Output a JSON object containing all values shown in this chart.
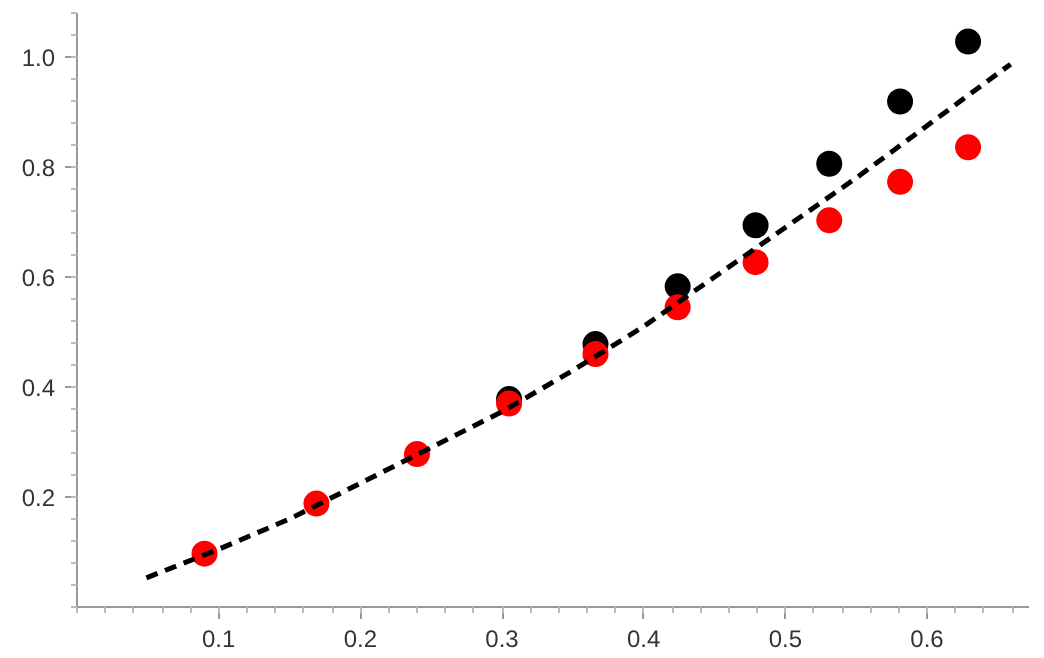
{
  "chart_data": {
    "type": "scatter",
    "xlim": [
      0,
      0.672
    ],
    "ylim": [
      0,
      1.08
    ],
    "xticks": [
      0.1,
      0.2,
      0.3,
      0.4,
      0.5,
      0.6
    ],
    "yticks": [
      0.2,
      0.4,
      0.6,
      0.8,
      {
        "value": 1.0,
        "label": "1.0"
      }
    ],
    "grid": false,
    "marker": "circle",
    "series": [
      {
        "color": "#000000",
        "x": [
          0.305,
          0.366,
          0.424,
          0.479,
          0.531,
          0.581,
          0.629
        ],
        "values": [
          0.378,
          0.478,
          0.583,
          0.694,
          0.806,
          0.919,
          1.028
        ]
      },
      {
        "color": "#ff0000",
        "x": [
          0.09,
          0.169,
          0.24,
          0.305,
          0.366,
          0.424,
          0.479,
          0.531,
          0.581,
          0.629
        ],
        "values": [
          0.097,
          0.188,
          0.278,
          0.37,
          0.46,
          0.545,
          0.627,
          0.703,
          0.773,
          0.836
        ]
      },
      {
        "type": "line",
        "line_style": "dashed",
        "marker": "none",
        "color": "#000000",
        "x": [
          0.049,
          0.1,
          0.15,
          0.2,
          0.25,
          0.3,
          0.35,
          0.4,
          0.45,
          0.5,
          0.55,
          0.6,
          0.659
        ],
        "values": [
          0.053,
          0.105,
          0.16,
          0.225,
          0.29,
          0.355,
          0.43,
          0.51,
          0.6,
          0.69,
          0.78,
          0.875,
          0.987
        ]
      }
    ]
  }
}
